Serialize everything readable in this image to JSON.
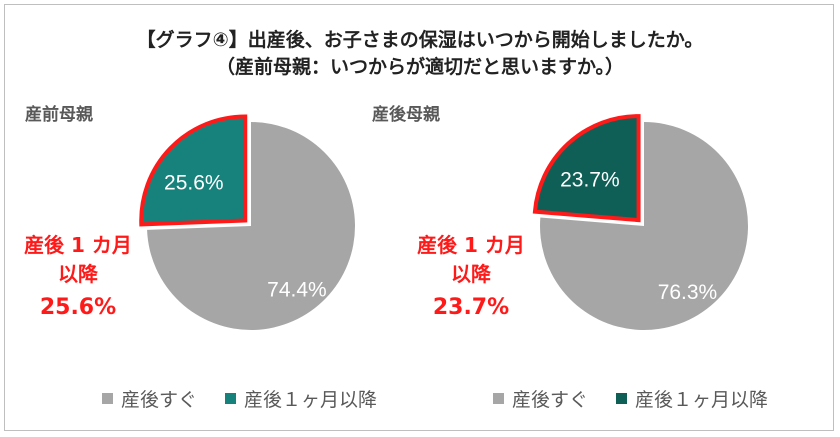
{
  "title_line1": "【グラフ④】出産後、お子さまの保湿はいつから開始しましたか。",
  "title_line2": "（産前母親：いつからが適切だと思いますか。）",
  "colors": {
    "gray": "#a6a6a6",
    "teal_left": "#17827c",
    "teal_right": "#0f5f57",
    "highlight": "#ff1a1a",
    "inner_label_gray": "#ffffff"
  },
  "chart_data": [
    {
      "type": "pie",
      "title": "産前母親",
      "categories": [
        "産後すぐ",
        "産後１ヶ月以降"
      ],
      "values": [
        74.4,
        25.6
      ],
      "value_labels": [
        "74.4%",
        "25.6%"
      ],
      "legend": [
        "産後すぐ",
        "産後１ヶ月以降"
      ],
      "legend_position": "bottom",
      "callout": {
        "line1": "産後 1 カ月",
        "line2": "以降",
        "value": "25.6%"
      }
    },
    {
      "type": "pie",
      "title": "産後母親",
      "categories": [
        "産後すぐ",
        "産後１ヶ月以降"
      ],
      "values": [
        76.3,
        23.7
      ],
      "value_labels": [
        "76.3%",
        "23.7%"
      ],
      "legend": [
        "産後すぐ",
        "産後１ヶ月以降"
      ],
      "legend_position": "bottom",
      "callout": {
        "line1": "産後 1 カ月",
        "line2": "以降",
        "value": "23.7%"
      }
    }
  ]
}
